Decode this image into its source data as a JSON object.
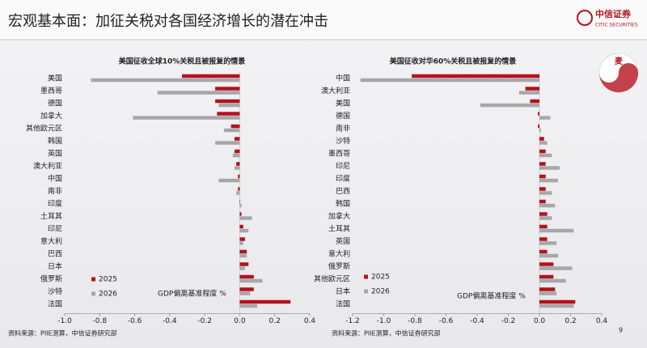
{
  "header": {
    "title": "宏观基本面：加征关税对各国经济增长的潜在冲击",
    "logo": "中信证券",
    "logo_en": "CITIC SECURITIES",
    "badge": "麦"
  },
  "footer": {
    "source": "资料来源：PIIE测算，中信证券研究部",
    "page": "9"
  },
  "chart_data": [
    {
      "type": "barh",
      "title": "美国征收全球10%关税且被报复的情景",
      "annotation": "GDP偏离基准程度 %",
      "categories": [
        "美国",
        "墨西哥",
        "德国",
        "加拿大",
        "其他欧元区",
        "韩国",
        "英国",
        "澳大利亚",
        "中国",
        "南非",
        "印度",
        "土耳其",
        "印尼",
        "意大利",
        "巴西",
        "日本",
        "俄罗斯",
        "沙特",
        "法国"
      ],
      "series": [
        {
          "name": "2025",
          "color": "#b3121d",
          "values": [
            -0.33,
            -0.14,
            -0.14,
            -0.13,
            -0.05,
            -0.03,
            -0.03,
            -0.02,
            -0.01,
            -0.01,
            0.0,
            0.01,
            0.02,
            0.03,
            0.04,
            0.05,
            0.08,
            0.08,
            0.29
          ]
        },
        {
          "name": "2026",
          "color": "#a7a7aa",
          "values": [
            -0.85,
            -0.47,
            -0.12,
            -0.61,
            -0.09,
            -0.14,
            -0.04,
            -0.03,
            -0.12,
            -0.02,
            0.01,
            0.07,
            0.05,
            0.02,
            0.04,
            0.03,
            0.13,
            0.06,
            0.1
          ]
        }
      ],
      "xlim": [
        -1.0,
        0.4
      ],
      "xticks": [
        {
          "value": -1.0,
          "label": "-1.0"
        },
        -0.8,
        -0.6,
        -0.4,
        -0.2,
        {
          "value": 0.0,
          "label": "0.0"
        },
        0.2,
        0.4
      ]
    },
    {
      "type": "barh",
      "title": "美国征收对华60%关税且被报复的情景",
      "annotation": "GDP偏离基准程度 %",
      "categories": [
        "中国",
        "澳大利亚",
        "美国",
        "德国",
        "南非",
        "沙特",
        "墨西哥",
        "印尼",
        "印度",
        "巴西",
        "韩国",
        "加拿大",
        "土耳其",
        "英国",
        "意大利",
        "俄罗斯",
        "其他欧元区",
        "日本",
        "法国"
      ],
      "series": [
        {
          "name": "2025",
          "color": "#b3121d",
          "values": [
            -0.82,
            -0.09,
            -0.06,
            -0.01,
            -0.01,
            0.03,
            0.04,
            0.04,
            0.04,
            0.04,
            0.04,
            0.05,
            0.05,
            0.05,
            0.05,
            0.09,
            0.09,
            0.1,
            0.23
          ]
        },
        {
          "name": "2026",
          "color": "#a7a7aa",
          "values": [
            -1.15,
            -0.13,
            -0.38,
            0.07,
            0.01,
            0.05,
            0.08,
            0.13,
            0.12,
            0.08,
            0.1,
            0.08,
            0.22,
            0.11,
            0.12,
            0.21,
            0.17,
            0.11,
            0.22
          ]
        }
      ],
      "xlim": [
        -1.2,
        0.4
      ],
      "xticks": [
        -1.2,
        {
          "value": -1.0,
          "label": "-1.0"
        },
        -0.8,
        -0.6,
        -0.4,
        -0.2,
        {
          "value": 0.0,
          "label": "0.0"
        },
        0.2,
        0.4
      ]
    }
  ]
}
